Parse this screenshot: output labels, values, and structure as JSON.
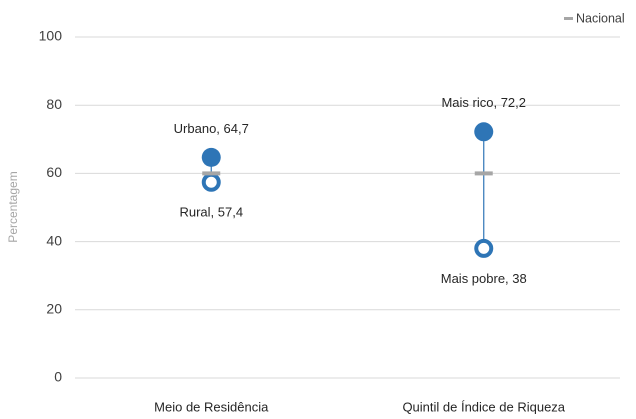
{
  "chart_data": {
    "type": "dot",
    "y_label": "Percentagem",
    "categories": [
      "Meio de Residência",
      "Quintil de Índice de Riqueza"
    ],
    "series": [
      {
        "color": "#2e75b6",
        "marker": "filled",
        "values": [
          64.7,
          72.2
        ],
        "value_labels": [
          "Urbano, 64,7",
          "Mais rico, 72,2"
        ]
      },
      {
        "color": "#2e75b6",
        "marker": "hollow",
        "values": [
          57.4,
          38
        ],
        "value_labels": [
          "Rural, 57,4",
          "Mais pobre, 38"
        ]
      },
      {
        "name": "Nacional",
        "color": "#a6a6a6",
        "marker": "dash",
        "values": [
          60,
          60
        ]
      }
    ],
    "ylim": [
      0,
      100
    ],
    "yticks": [
      0,
      20,
      40,
      60,
      80,
      100
    ],
    "grid": true,
    "legend": "top-right"
  }
}
